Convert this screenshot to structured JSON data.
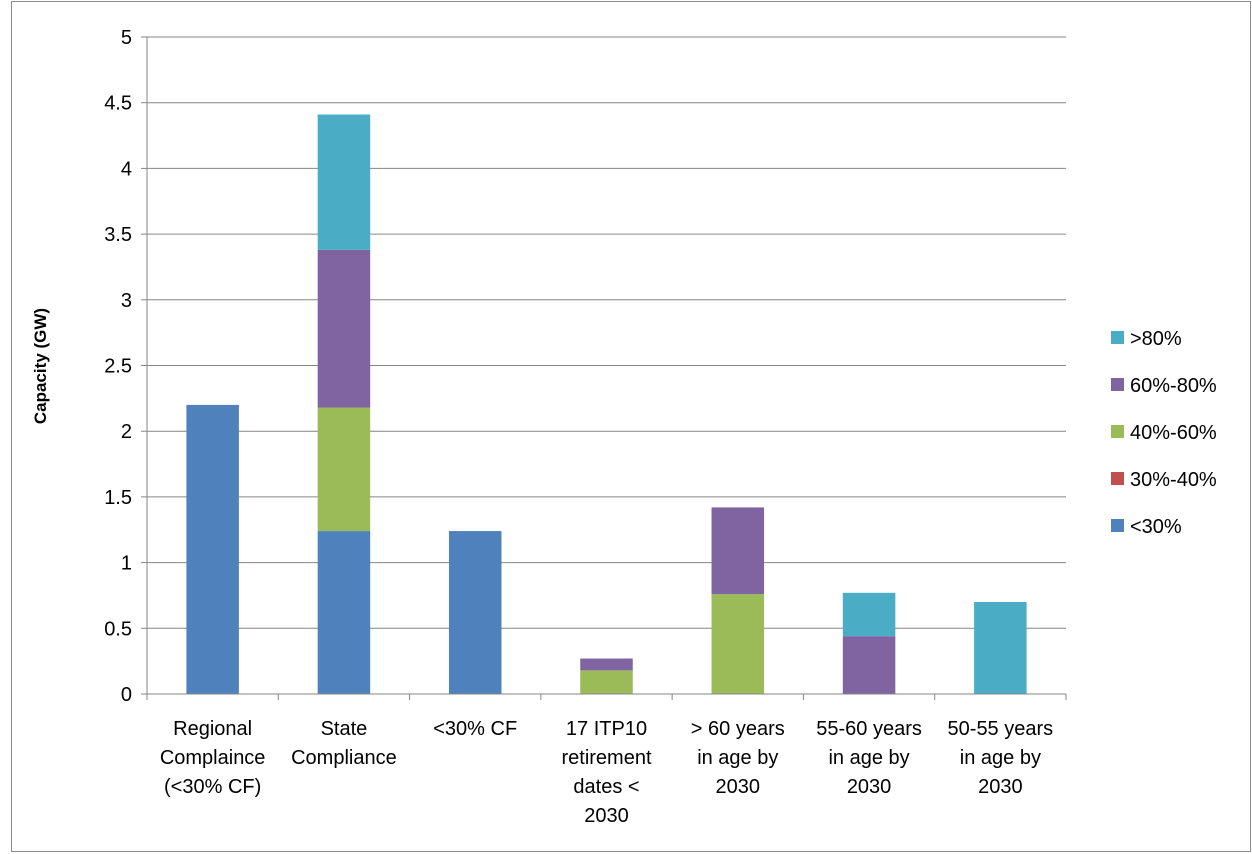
{
  "chart_data": {
    "type": "bar",
    "stacked": true,
    "categories": [
      [
        "Regional",
        "Complaince",
        "(<30% CF)"
      ],
      [
        "State",
        "Compliance"
      ],
      [
        "<30% CF"
      ],
      [
        "17 ITP10",
        "retirement",
        "dates <",
        "2030"
      ],
      [
        "> 60 years",
        "in age by",
        "2030"
      ],
      [
        "55-60 years",
        "in age by",
        "2030"
      ],
      [
        "50-55 years",
        "in age by",
        "2030"
      ]
    ],
    "series": [
      {
        "name": "<30%",
        "color": "#4f81bd",
        "values": [
          2.2,
          1.24,
          1.24,
          0,
          0,
          0,
          0
        ]
      },
      {
        "name": "30%-40%",
        "color": "#c0504d",
        "values": [
          0,
          0,
          0,
          0,
          0,
          0,
          0
        ]
      },
      {
        "name": "40%-60%",
        "color": "#9bbb59",
        "values": [
          0,
          0.94,
          0,
          0.18,
          0.76,
          0,
          0
        ]
      },
      {
        "name": "60%-80%",
        "color": "#8064a2",
        "values": [
          0,
          1.2,
          0,
          0.09,
          0.66,
          0.44,
          0
        ]
      },
      {
        "name": ">80%",
        "color": "#4bacc6",
        "values": [
          0,
          1.03,
          0,
          0,
          0,
          0.33,
          0.7
        ]
      }
    ],
    "ylabel": "Capacity (GW)",
    "ylim": [
      0,
      5
    ],
    "yticks": [
      "0",
      "0.5",
      "1",
      "1.5",
      "2",
      "2.5",
      "3",
      "3.5",
      "4",
      "4.5",
      "5"
    ],
    "grid": true,
    "legend_position": "right"
  }
}
